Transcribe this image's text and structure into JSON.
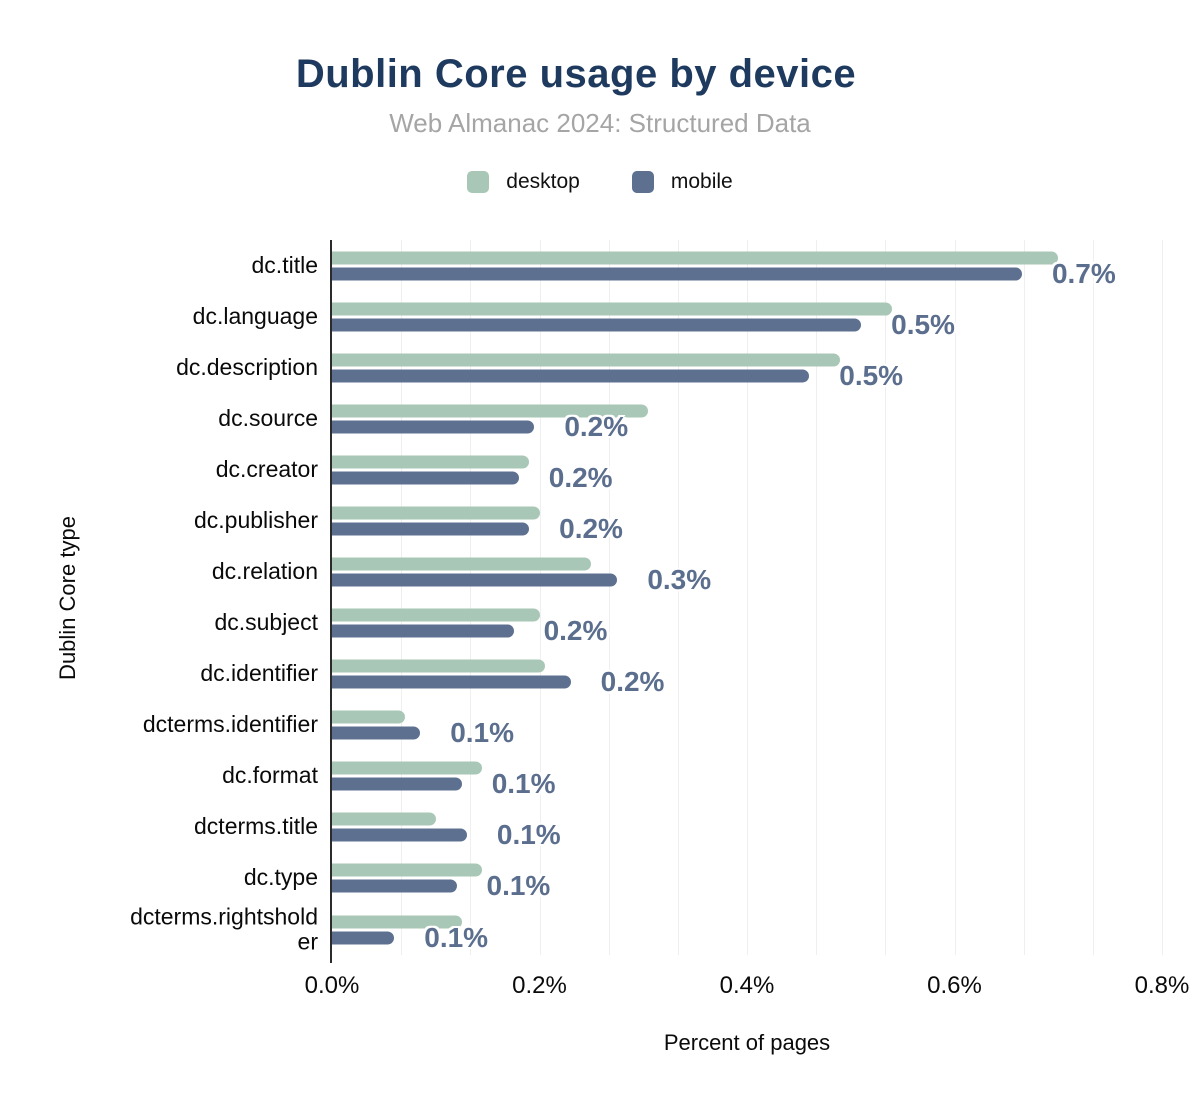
{
  "title": "Dublin Core usage by device",
  "subtitle": "Web Almanac 2024: Structured Data",
  "colors": {
    "title": "#1e3a5e",
    "subtitle": "#a5a5a5",
    "desktop": "#a9c7b6",
    "mobile": "#5d7090",
    "value_label": "#5b6e8e",
    "gridline": "#efefef",
    "axis_line": "#2b2b2b",
    "background": "#ffffff"
  },
  "chart_data": {
    "type": "bar",
    "orientation": "horizontal",
    "title": "Dublin Core usage by device",
    "subtitle": "Web Almanac 2024: Structured Data",
    "xlabel": "Percent of pages",
    "ylabel": "Dublin Core type",
    "xlim": [
      0,
      0.8
    ],
    "x_ticks": [
      "0.0%",
      "0.2%",
      "0.4%",
      "0.6%",
      "0.8%"
    ],
    "x_tick_values": [
      0.0,
      0.2,
      0.4,
      0.6,
      0.8
    ],
    "grid": true,
    "grid_divisions": 12,
    "legend_position": "top",
    "categories": [
      "dc.title",
      "dc.language",
      "dc.description",
      "dc.source",
      "dc.creator",
      "dc.publisher",
      "dc.relation",
      "dc.subject",
      "dc.identifier",
      "dcterms.identifier",
      "dc.format",
      "dcterms.title",
      "dc.type",
      "dcterms.rightsholder"
    ],
    "series": [
      {
        "name": "desktop",
        "color": "#a9c7b6",
        "values": [
          0.7,
          0.54,
          0.49,
          0.305,
          0.19,
          0.2,
          0.25,
          0.2,
          0.205,
          0.07,
          0.145,
          0.1,
          0.145,
          0.125
        ]
      },
      {
        "name": "mobile",
        "color": "#5d7090",
        "values": [
          0.665,
          0.51,
          0.46,
          0.195,
          0.18,
          0.19,
          0.275,
          0.175,
          0.23,
          0.085,
          0.125,
          0.13,
          0.12,
          0.06
        ]
      }
    ],
    "bar_labels": [
      "0.7%",
      "0.5%",
      "0.5%",
      "0.2%",
      "0.2%",
      "0.2%",
      "0.3%",
      "0.2%",
      "0.2%",
      "0.1%",
      "0.1%",
      "0.1%",
      "0.1%",
      "0.1%"
    ]
  }
}
